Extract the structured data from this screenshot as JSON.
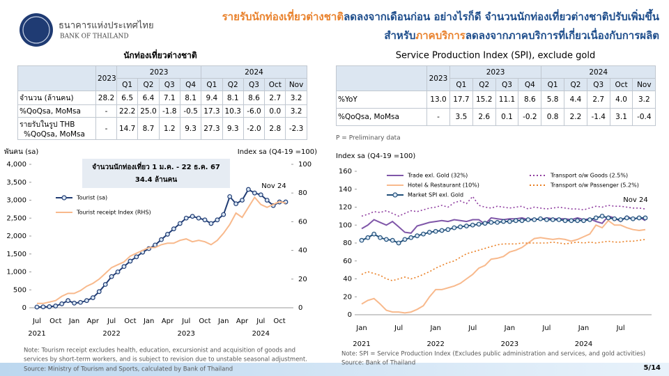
{
  "header": {
    "org_th": "ธนาคารแห่งประเทศไทย",
    "org_en": "BANK OF THAILAND",
    "title_lines": [
      [
        {
          "text": "รายรับนักท่องเที่ยวต่างชาติ",
          "color": "#e9822d"
        },
        {
          "text": "ลดลงจากเดือนก่อน อย่างไรก็ดี จำนวนนักท่องเที่ยวต่างชาติปรับเพิ่มขึ้น",
          "color": "#1f4e8c"
        }
      ],
      [
        {
          "text": "สำหรับ",
          "color": "#1f4e8c"
        },
        {
          "text": "ภาคบริการ",
          "color": "#e9822d"
        },
        {
          "text": "ลดลงจากภาคบริการที่เกี่ยวเนื่องกับการผลิต",
          "color": "#1f4e8c"
        }
      ]
    ]
  },
  "tables": [
    {
      "title": "นักท่องเที่ยวต่างชาติ",
      "annual_label": "2023",
      "groups": [
        {
          "label": "2023",
          "columns": [
            "Q1",
            "Q2",
            "Q3",
            "Q4"
          ]
        },
        {
          "label": "2024",
          "columns": [
            "Q1",
            "Q2",
            "Q3",
            "Oct",
            "Nov"
          ]
        }
      ],
      "rows": [
        {
          "label": [
            "จำนวน (ล้านคน)"
          ],
          "cells": [
            "28.2",
            "6.5",
            "6.4",
            "7.1",
            "8.1",
            "9.4",
            "8.1",
            "8.6",
            "2.7",
            "3.2"
          ]
        },
        {
          "label": [
            " %QoQsa, MoMsa"
          ],
          "cells": [
            "-",
            "22.2",
            "25.0",
            "-1.8",
            "-0.5",
            "17.3",
            "10.3",
            "-6.0",
            "0.0",
            "3.2"
          ]
        },
        {
          "label": [
            "รายรับในรูป THB",
            "%QoQsa, MoMsa"
          ],
          "cells": [
            "-",
            "14.7",
            "8.7",
            "1.2",
            "9.3",
            "27.3",
            "9.3",
            "-2.0",
            "2.8",
            "-2.3"
          ]
        }
      ]
    },
    {
      "title": "Service Production Index (SPI), exclude gold",
      "annual_label": "2023",
      "groups": [
        {
          "label": "2023",
          "columns": [
            "Q1",
            "Q2",
            "Q3",
            "Q4"
          ]
        },
        {
          "label": "2024",
          "columns": [
            "Q1",
            "Q2",
            "Q3",
            "Oct",
            "Nov"
          ]
        }
      ],
      "rows": [
        {
          "label": [
            "%YoY"
          ],
          "cells": [
            "13.0",
            "17.7",
            "15.2",
            "11.1",
            "8.6",
            "5.8",
            "4.4",
            "2.7",
            "4.0",
            "3.2"
          ]
        },
        {
          "label": [
            "%QoQsa, MoMsa"
          ],
          "cells": [
            "-",
            "3.5",
            "2.6",
            "0.1",
            "-0.2",
            "0.8",
            "2.2",
            "-1.4",
            "3.1",
            "-0.4"
          ]
        }
      ],
      "note": "P = Preliminary data"
    }
  ],
  "chart_data": [
    {
      "type": "line",
      "ylabel": "พันคน (sa)",
      "y2label": "Index sa (Q4-19 =100)",
      "categories": [
        "Jul",
        null,
        null,
        "Oct",
        null,
        null,
        "Jan",
        null,
        null,
        "Apr",
        null,
        null,
        "Jul",
        null,
        null,
        "Oct",
        null,
        null,
        "Jan",
        null,
        null,
        "Apr",
        null,
        null,
        "Jul",
        null,
        null,
        "Oct",
        null,
        null,
        "Jan",
        null,
        null,
        "Apr",
        null,
        null,
        "Jul",
        null,
        null,
        "Oct",
        null
      ],
      "years": [
        "2021",
        null,
        null,
        null,
        null,
        null,
        null,
        null,
        null,
        null,
        null,
        null,
        "2022",
        null,
        null,
        null,
        null,
        null,
        null,
        null,
        null,
        null,
        null,
        null,
        "2023",
        null,
        null,
        null,
        null,
        null,
        null,
        null,
        null,
        null,
        null,
        null,
        "2024",
        null,
        null,
        null,
        null
      ],
      "ylim": [
        0,
        4000
      ],
      "yticks": [
        0,
        500,
        {
          "value": 1000,
          "label": "1,000"
        },
        {
          "value": 1500,
          "label": "1,500"
        },
        {
          "value": 2000,
          "label": "2,000"
        },
        {
          "value": 2500,
          "label": "2,500"
        },
        {
          "value": 3000,
          "label": "3,000"
        },
        {
          "value": 3500,
          "label": "3,500"
        },
        {
          "value": 4000,
          "label": "4,000"
        }
      ],
      "y2lim": [
        0,
        100
      ],
      "y2ticks": [
        0,
        20,
        40,
        60,
        80,
        100
      ],
      "grid": false,
      "annotations": [
        "จำนวนนักท่องเที่ยว 1 ม.ค. - 22 ธ.ค. 67",
        "34.4 ล้านคน",
        "Nov 24"
      ],
      "series": [
        {
          "name": "Tourist (sa)",
          "color": "#1f3b73",
          "markers": true,
          "dash": false,
          "values": [
            20,
            25,
            30,
            50,
            110,
            200,
            130,
            150,
            200,
            280,
            450,
            650,
            870,
            1000,
            1150,
            1300,
            1420,
            1550,
            1650,
            1750,
            1900,
            2050,
            2200,
            2350,
            2500,
            2550,
            2500,
            2450,
            2350,
            2450,
            2600,
            3100,
            2900,
            3000,
            3300,
            3200,
            3150,
            3000,
            2850,
            2950,
            2950
          ]
        },
        {
          "name": "Tourist receipt Index (RHS)",
          "color": "#f8b98c",
          "markers": false,
          "dash": false,
          "axis": "y2",
          "values": [
            3,
            3,
            4,
            5,
            8,
            10,
            10,
            12,
            15,
            17,
            20,
            24,
            28,
            30,
            32,
            36,
            38,
            40,
            42,
            42,
            44,
            45,
            45,
            47,
            48,
            46,
            47,
            46,
            44,
            47,
            52,
            58,
            66,
            63,
            70,
            77,
            72,
            70,
            72,
            74,
            73
          ]
        }
      ]
    },
    {
      "type": "line",
      "ylabel": "Index sa (Q4-19 =100)",
      "categories": [
        "Jan",
        null,
        null,
        null,
        null,
        null,
        "Jul",
        null,
        null,
        null,
        null,
        null,
        "Jan",
        null,
        null,
        null,
        null,
        null,
        "Jul",
        null,
        null,
        null,
        null,
        null,
        "Jan",
        null,
        null,
        null,
        null,
        null,
        "Jul",
        null,
        null,
        null,
        null,
        null,
        "Jan",
        null,
        null,
        null,
        null,
        null,
        "Jul",
        null,
        null,
        null,
        null
      ],
      "years": [
        "2021",
        null,
        null,
        null,
        null,
        null,
        null,
        null,
        null,
        null,
        null,
        null,
        "2022",
        null,
        null,
        null,
        null,
        null,
        null,
        null,
        null,
        null,
        null,
        null,
        "2023",
        null,
        null,
        null,
        null,
        null,
        null,
        null,
        null,
        null,
        null,
        null,
        "2024",
        null,
        null,
        null,
        null,
        null,
        null,
        null,
        null,
        null,
        null
      ],
      "ylim": [
        0,
        160
      ],
      "yticks": [
        0,
        20,
        40,
        60,
        80,
        100,
        120,
        140,
        160
      ],
      "grid": false,
      "annotations": [
        "Nov 24"
      ],
      "series": [
        {
          "name": "Trade exl. Gold (32%)",
          "color": "#7f56a8",
          "markers": false,
          "dash": false,
          "values": [
            96,
            100,
            106,
            103,
            100,
            104,
            98,
            92,
            91,
            99,
            101,
            103,
            104,
            105,
            104,
            106,
            105,
            104,
            106,
            106,
            101,
            108,
            107,
            106,
            107,
            107,
            108,
            106,
            107,
            106,
            108,
            107,
            107,
            107,
            106,
            108,
            106,
            107,
            104,
            102,
            110,
            108,
            104,
            110,
            106,
            109,
            105
          ]
        },
        {
          "name": "Transport o/w Goods (2.5%)",
          "color": "#8e3c9f",
          "markers": false,
          "dash": true,
          "values": [
            110,
            112,
            115,
            114,
            116,
            113,
            110,
            113,
            116,
            115,
            117,
            119,
            120,
            122,
            120,
            125,
            127,
            124,
            132,
            122,
            120,
            119,
            121,
            120,
            119,
            120,
            121,
            118,
            120,
            119,
            118,
            119,
            120,
            119,
            118,
            118,
            117,
            119,
            121,
            120,
            122,
            121,
            121,
            120,
            119,
            119,
            118
          ]
        },
        {
          "name": "Hotel & Restaurant (10%)",
          "color": "#f8b98c",
          "markers": false,
          "dash": false,
          "values": [
            12,
            16,
            18,
            12,
            5,
            3,
            3,
            2,
            3,
            6,
            10,
            20,
            28,
            28,
            30,
            32,
            35,
            40,
            45,
            52,
            55,
            62,
            63,
            65,
            70,
            72,
            75,
            80,
            85,
            86,
            85,
            84,
            85,
            84,
            82,
            84,
            87,
            90,
            100,
            97,
            105,
            100,
            100,
            97,
            95,
            94,
            95
          ]
        },
        {
          "name": "Transport o/w Passenger (5.2%)",
          "color": "#e97d20",
          "markers": false,
          "dash": true,
          "values": [
            45,
            48,
            46,
            44,
            40,
            38,
            40,
            42,
            40,
            42,
            45,
            48,
            52,
            55,
            58,
            60,
            64,
            68,
            70,
            72,
            74,
            76,
            78,
            79,
            79,
            79,
            80,
            80,
            80,
            80,
            80,
            81,
            80,
            79,
            80,
            81,
            80,
            81,
            80,
            81,
            82,
            81,
            81,
            82,
            82,
            83,
            84
          ]
        },
        {
          "name": "Market SPI exl. Gold",
          "color": "#1f4e79",
          "markers": true,
          "dash": false,
          "values": [
            83,
            86,
            90,
            86,
            84,
            83,
            80,
            84,
            86,
            88,
            90,
            92,
            93,
            94,
            95,
            97,
            98,
            99,
            100,
            101,
            102,
            103,
            103,
            104,
            104,
            105,
            105,
            106,
            106,
            107,
            106,
            106,
            106,
            105,
            105,
            105,
            105,
            106,
            108,
            110,
            108,
            107,
            106,
            108,
            107,
            108,
            108
          ]
        }
      ]
    }
  ],
  "notes": {
    "left": [
      "Note: Tourism receipt excludes health, education, excursionist and acquisition of goods and",
      "services by short-term workers, and is subject to revision due to unstable seasonal adjustment.",
      "Source: Ministry of Tourism and Sports, calculated by Bank of Thailand"
    ],
    "right": [
      "Note: SPI = Service Production Index (Excludes public administration and services, and gold activities)",
      "Source: Bank of Thailand"
    ],
    "page": "5/14"
  }
}
